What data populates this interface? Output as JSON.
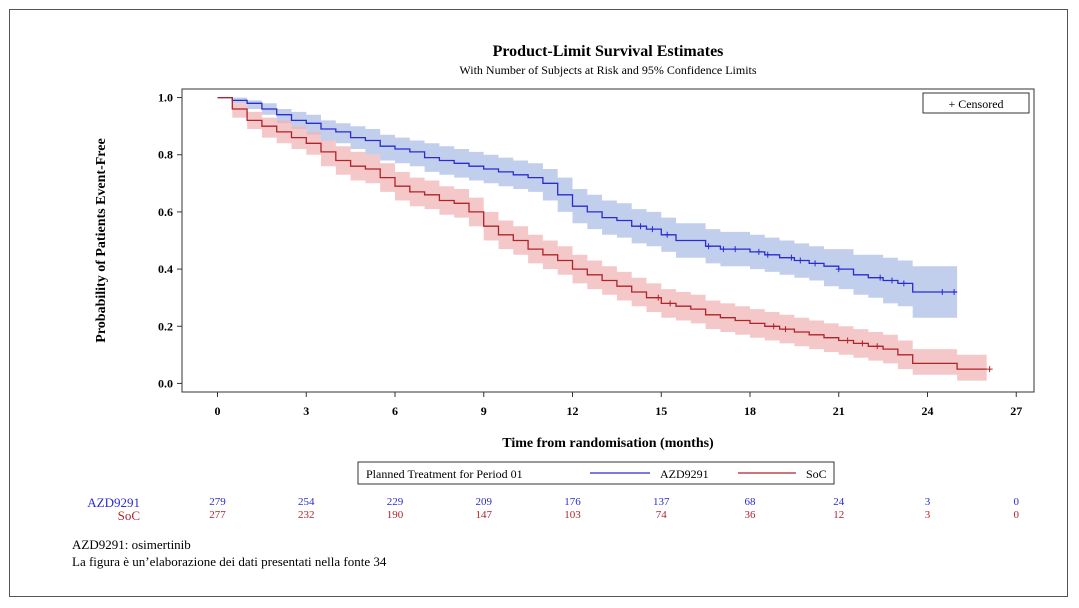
{
  "chart_data": {
    "type": "line",
    "title": "Product-Limit Survival Estimates",
    "subtitle": "With Number of Subjects at Risk and 95% Confidence Limits",
    "xlabel": "Time from randomisation (months)",
    "ylabel": "Probability of Patients Event-Free",
    "xlim": [
      -1.2,
      27.6
    ],
    "ylim": [
      -0.03,
      1.03
    ],
    "xticks": [
      0,
      3,
      6,
      9,
      12,
      15,
      18,
      21,
      24,
      27
    ],
    "yticks": [
      "0.0",
      "0.2",
      "0.4",
      "0.6",
      "0.8",
      "1.0"
    ],
    "censored_legend": "+ Censored",
    "legend_title": "Planned Treatment for Period 01",
    "series": [
      {
        "name": "AZD9291",
        "color": "#2b2bd1",
        "band_color": "#aebfe6",
        "x": [
          0,
          0.5,
          1,
          1.5,
          2,
          2.5,
          3,
          3.5,
          4,
          4.5,
          5,
          5.5,
          6,
          6.5,
          7,
          7.5,
          8,
          8.5,
          9,
          9.5,
          10,
          10.5,
          11,
          11.5,
          12,
          12.5,
          13,
          13.5,
          14,
          14.5,
          15,
          15.5,
          16,
          16.5,
          17,
          17.5,
          18,
          18.5,
          19,
          19.5,
          20,
          20.5,
          21,
          21.5,
          22,
          22.5,
          23,
          23.5,
          24,
          25
        ],
        "y": [
          1.0,
          0.99,
          0.98,
          0.96,
          0.94,
          0.92,
          0.91,
          0.89,
          0.88,
          0.86,
          0.85,
          0.83,
          0.82,
          0.81,
          0.79,
          0.78,
          0.77,
          0.76,
          0.75,
          0.74,
          0.73,
          0.72,
          0.7,
          0.66,
          0.62,
          0.6,
          0.58,
          0.57,
          0.55,
          0.54,
          0.52,
          0.5,
          0.5,
          0.48,
          0.47,
          0.47,
          0.46,
          0.45,
          0.44,
          0.43,
          0.42,
          0.41,
          0.4,
          0.38,
          0.37,
          0.36,
          0.35,
          0.32,
          0.32,
          0.32
        ],
        "lower": [
          1.0,
          0.98,
          0.96,
          0.94,
          0.91,
          0.89,
          0.87,
          0.85,
          0.84,
          0.82,
          0.8,
          0.78,
          0.77,
          0.76,
          0.74,
          0.73,
          0.72,
          0.71,
          0.7,
          0.69,
          0.68,
          0.67,
          0.64,
          0.6,
          0.56,
          0.54,
          0.52,
          0.51,
          0.49,
          0.48,
          0.46,
          0.44,
          0.44,
          0.42,
          0.41,
          0.41,
          0.4,
          0.39,
          0.38,
          0.37,
          0.36,
          0.34,
          0.33,
          0.31,
          0.3,
          0.28,
          0.27,
          0.23,
          0.23,
          0.23
        ],
        "upper": [
          1.0,
          1.0,
          0.99,
          0.98,
          0.96,
          0.95,
          0.94,
          0.92,
          0.91,
          0.9,
          0.89,
          0.87,
          0.86,
          0.85,
          0.84,
          0.83,
          0.82,
          0.81,
          0.8,
          0.79,
          0.78,
          0.77,
          0.75,
          0.72,
          0.68,
          0.66,
          0.64,
          0.63,
          0.61,
          0.6,
          0.58,
          0.56,
          0.56,
          0.54,
          0.53,
          0.53,
          0.52,
          0.51,
          0.5,
          0.49,
          0.48,
          0.47,
          0.47,
          0.45,
          0.45,
          0.44,
          0.43,
          0.41,
          0.41,
          0.41
        ],
        "censored_x": [
          14.3,
          14.7,
          15.2,
          16.6,
          17.1,
          17.5,
          18.3,
          18.6,
          19.4,
          19.7,
          20.2,
          21.0,
          22.4,
          22.8,
          23.2,
          24.5,
          24.9
        ]
      },
      {
        "name": "SoC",
        "color": "#b0232a",
        "band_color": "#f0b6b6",
        "x": [
          0,
          0.5,
          1,
          1.5,
          2,
          2.5,
          3,
          3.5,
          4,
          4.5,
          5,
          5.5,
          6,
          6.5,
          7,
          7.5,
          8,
          8.5,
          9,
          9.5,
          10,
          10.5,
          11,
          11.5,
          12,
          12.5,
          13,
          13.5,
          14,
          14.5,
          15,
          15.5,
          16,
          16.5,
          17,
          17.5,
          18,
          18.5,
          19,
          19.5,
          20,
          20.5,
          21,
          21.5,
          22,
          22.5,
          23,
          23.5,
          24,
          25,
          26
        ],
        "y": [
          1.0,
          0.96,
          0.92,
          0.9,
          0.88,
          0.86,
          0.84,
          0.81,
          0.78,
          0.76,
          0.75,
          0.72,
          0.69,
          0.67,
          0.66,
          0.64,
          0.63,
          0.6,
          0.55,
          0.52,
          0.5,
          0.47,
          0.45,
          0.43,
          0.4,
          0.38,
          0.36,
          0.34,
          0.32,
          0.3,
          0.28,
          0.27,
          0.26,
          0.24,
          0.23,
          0.22,
          0.21,
          0.2,
          0.19,
          0.18,
          0.17,
          0.16,
          0.15,
          0.14,
          0.13,
          0.12,
          0.1,
          0.07,
          0.07,
          0.05,
          0.05
        ],
        "lower": [
          1.0,
          0.93,
          0.89,
          0.86,
          0.84,
          0.82,
          0.8,
          0.76,
          0.73,
          0.71,
          0.7,
          0.67,
          0.64,
          0.62,
          0.61,
          0.59,
          0.58,
          0.55,
          0.5,
          0.47,
          0.45,
          0.42,
          0.4,
          0.38,
          0.35,
          0.33,
          0.31,
          0.29,
          0.27,
          0.25,
          0.23,
          0.22,
          0.21,
          0.19,
          0.18,
          0.17,
          0.16,
          0.15,
          0.14,
          0.13,
          0.12,
          0.11,
          0.1,
          0.09,
          0.08,
          0.07,
          0.05,
          0.03,
          0.03,
          0.01,
          0.01
        ],
        "upper": [
          1.0,
          0.98,
          0.95,
          0.93,
          0.92,
          0.9,
          0.88,
          0.85,
          0.83,
          0.81,
          0.8,
          0.77,
          0.74,
          0.72,
          0.71,
          0.69,
          0.68,
          0.65,
          0.6,
          0.57,
          0.55,
          0.52,
          0.5,
          0.48,
          0.45,
          0.43,
          0.41,
          0.39,
          0.37,
          0.35,
          0.33,
          0.32,
          0.31,
          0.29,
          0.28,
          0.27,
          0.26,
          0.25,
          0.24,
          0.23,
          0.22,
          0.21,
          0.2,
          0.19,
          0.18,
          0.17,
          0.15,
          0.12,
          0.12,
          0.1,
          0.1
        ],
        "censored_x": [
          14.9,
          15.3,
          18.8,
          19.2,
          21.3,
          21.8,
          22.3,
          26.1
        ]
      }
    ],
    "at_risk": {
      "times": [
        0,
        3,
        6,
        9,
        12,
        15,
        18,
        21,
        24,
        27
      ],
      "rows": [
        {
          "name": "AZD9291",
          "color": "#2b2bd1",
          "values": [
            "279",
            "254",
            "229",
            "209",
            "176",
            "137",
            "68",
            "24",
            "3",
            "0"
          ]
        },
        {
          "name": "SoC",
          "color": "#b0232a",
          "values": [
            "277",
            "232",
            "190",
            "147",
            "103",
            "74",
            "36",
            "12",
            "3",
            "0"
          ]
        }
      ]
    }
  },
  "footnotes": [
    "AZD9291: osimertinib",
    "La figura è un’elaborazione dei dati presentati nella fonte 34"
  ]
}
